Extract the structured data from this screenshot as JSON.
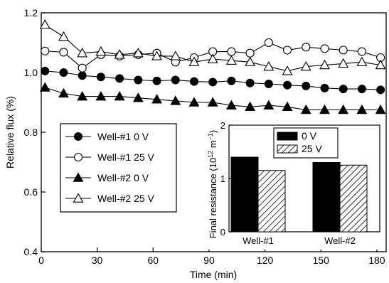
{
  "chart_data": [
    {
      "type": "line",
      "xlabel": "Time (min)",
      "ylabel": "Relative flux (%)",
      "xlim": [
        0,
        185
      ],
      "ylim": [
        0.4,
        1.2
      ],
      "xticks": [
        0,
        30,
        60,
        90,
        120,
        150,
        180
      ],
      "yticks": [
        0.4,
        0.6,
        0.8,
        1.0,
        1.2
      ],
      "xtick_labels": [
        "0",
        "30",
        "60",
        "90",
        "120",
        "150",
        "180"
      ],
      "ytick_labels": [
        "0.4",
        "0.6",
        "0.8",
        "1.0",
        "1.2"
      ],
      "grid": false,
      "legend_position": "left",
      "series": [
        {
          "name": "Well-#1 0 V",
          "marker": "filled-circle",
          "color": "#000000",
          "x": [
            2,
            12,
            22,
            32,
            42,
            52,
            62,
            72,
            82,
            92,
            102,
            112,
            122,
            132,
            142,
            152,
            162,
            172,
            182
          ],
          "y": [
            1.005,
            1.0,
            0.99,
            0.985,
            0.98,
            0.975,
            0.972,
            0.975,
            0.97,
            0.968,
            0.972,
            0.965,
            0.962,
            0.958,
            0.955,
            0.948,
            0.945,
            0.945,
            0.942
          ]
        },
        {
          "name": "Well-#1 25 V",
          "marker": "open-circle",
          "color": "#000000",
          "x": [
            2,
            12,
            22,
            32,
            42,
            52,
            62,
            72,
            82,
            92,
            102,
            112,
            122,
            132,
            142,
            152,
            162,
            172,
            182
          ],
          "y": [
            1.072,
            1.068,
            1.015,
            1.06,
            1.055,
            1.06,
            1.065,
            1.035,
            1.05,
            1.07,
            1.07,
            1.065,
            1.1,
            1.075,
            1.085,
            1.08,
            1.075,
            1.07,
            1.05
          ]
        },
        {
          "name": "Well-#2 0 V",
          "marker": "filled-triangle",
          "color": "#000000",
          "x": [
            2,
            12,
            22,
            32,
            42,
            52,
            62,
            72,
            82,
            92,
            102,
            112,
            122,
            132,
            142,
            152,
            162,
            172,
            182
          ],
          "y": [
            0.95,
            0.93,
            0.92,
            0.92,
            0.92,
            0.915,
            0.91,
            0.905,
            0.9,
            0.9,
            0.89,
            0.885,
            0.89,
            0.885,
            0.875,
            0.875,
            0.875,
            0.875,
            0.875
          ]
        },
        {
          "name": "Well-#2 25 V",
          "marker": "open-triangle",
          "color": "#000000",
          "x": [
            2,
            12,
            22,
            32,
            42,
            52,
            62,
            72,
            82,
            92,
            102,
            112,
            122,
            132,
            142,
            152,
            162,
            172,
            182
          ],
          "y": [
            1.16,
            1.12,
            1.065,
            1.07,
            1.06,
            1.065,
            1.055,
            1.055,
            1.035,
            1.045,
            1.04,
            1.035,
            1.02,
            1.005,
            1.02,
            1.025,
            1.03,
            1.035,
            1.025
          ]
        }
      ]
    },
    {
      "type": "bar",
      "categories": [
        "Well-#1",
        "Well-#2"
      ],
      "series": [
        {
          "name": "0 V",
          "pattern": "solid-black",
          "values": [
            1.4,
            1.3
          ]
        },
        {
          "name": "25 V",
          "pattern": "diagonal-hatch",
          "values": [
            1.15,
            1.25
          ]
        }
      ],
      "ylabel_prefix": "Final resistance (10",
      "ylabel_exp": "12",
      "ylabel_mid": " m",
      "ylabel_exp2": "−1",
      "ylabel_suffix": ")",
      "ylim": [
        0,
        2
      ],
      "yticks": [
        0,
        1,
        2
      ],
      "ytick_labels": [
        "0",
        "1",
        "2"
      ],
      "legend_position": "top-center",
      "grid": false
    }
  ]
}
